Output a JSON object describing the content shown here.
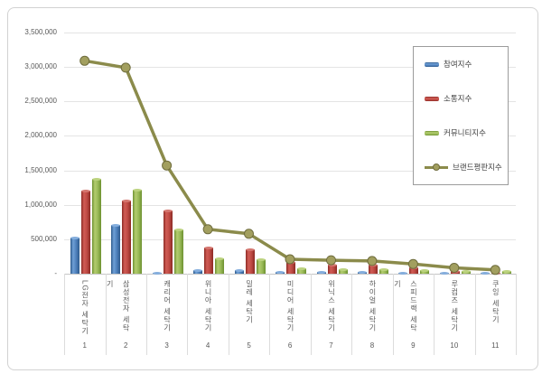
{
  "chart_data": {
    "type": "bar",
    "title": "",
    "xlabel": "",
    "ylabel": "",
    "categories": [
      "LG전자 세탁기",
      "삼성전자 세탁기",
      "캐리어 세탁기",
      "위니아 세탁기",
      "밀레 세탁기",
      "미디어 세탁기",
      "위닉스 세탁기",
      "하이얼 세탁기",
      "스피드랙 세탁기",
      "루컴즈 세탁기",
      "쿠잉 세탁기"
    ],
    "category_numbers": [
      "1",
      "2",
      "3",
      "4",
      "5",
      "6",
      "7",
      "8",
      "9",
      "10",
      "11"
    ],
    "series": [
      {
        "key": "participation",
        "name": "참여지수",
        "type": "bar",
        "color": "#4f81bd",
        "values": [
          530000,
          710000,
          15000,
          55000,
          55000,
          25000,
          20000,
          20000,
          15000,
          10000,
          8000
        ]
      },
      {
        "key": "communication",
        "name": "소통지수",
        "type": "bar",
        "color": "#bf4b45",
        "values": [
          1210000,
          1060000,
          920000,
          385000,
          350000,
          165000,
          130000,
          125000,
          90000,
          35000,
          15000
        ]
      },
      {
        "key": "community",
        "name": "커뮤니티지수",
        "type": "bar",
        "color": "#9bbb59",
        "values": [
          1370000,
          1220000,
          640000,
          225000,
          205000,
          80000,
          60000,
          60000,
          55000,
          45000,
          35000
        ]
      },
      {
        "key": "brand-reputation",
        "name": "브랜드평판지수",
        "type": "line",
        "color": "#8b8b4b",
        "values": [
          3090000,
          2990000,
          1570000,
          645000,
          580000,
          210000,
          195000,
          185000,
          140000,
          85000,
          55000
        ]
      }
    ],
    "ylim": [
      0,
      3500000
    ],
    "ytick_step": 500000,
    "ytick_labels": [
      "-",
      "500,000",
      "1,000,000",
      "1,500,000",
      "2,000,000",
      "2,500,000",
      "3,000,000",
      "3,500,000"
    ],
    "grid": true,
    "legend_position": "top-right"
  }
}
